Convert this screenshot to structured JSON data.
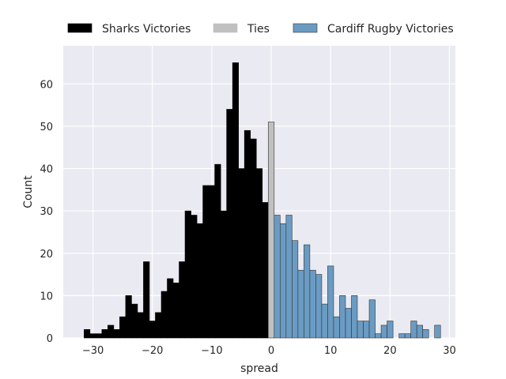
{
  "chart_data": {
    "type": "bar",
    "title": "",
    "xlabel": "spread",
    "ylabel": "Count",
    "xlim": [
      -35,
      31
    ],
    "ylim": [
      0,
      69
    ],
    "xticks": [
      -30,
      -20,
      -10,
      0,
      10,
      20,
      30
    ],
    "yticks": [
      0,
      10,
      20,
      30,
      40,
      50,
      60
    ],
    "grid": true,
    "legend_placement": "top",
    "series": [
      {
        "name": "Sharks Victories",
        "color": "#000000",
        "edgecolor": "#000000",
        "x": [
          -31,
          -30,
          -29,
          -28,
          -27,
          -26,
          -25,
          -24,
          -23,
          -22,
          -21,
          -20,
          -19,
          -18,
          -17,
          -16,
          -15,
          -14,
          -13,
          -12,
          -11,
          -10,
          -9,
          -8,
          -7,
          -6,
          -5,
          -4,
          -3,
          -2,
          -1
        ],
        "values": [
          2,
          1,
          1,
          2,
          3,
          2,
          5,
          10,
          8,
          6,
          18,
          4,
          6,
          11,
          14,
          13,
          18,
          30,
          29,
          27,
          36,
          36,
          41,
          30,
          54,
          65,
          40,
          49,
          47,
          40,
          32
        ]
      },
      {
        "name": "Ties",
        "color": "#c0c0c0",
        "edgecolor": "#333333",
        "x": [
          0
        ],
        "values": [
          51
        ]
      },
      {
        "name": "Cardiff Rugby Victories",
        "color": "#6a9bc3",
        "edgecolor": "#333333",
        "x": [
          1,
          2,
          3,
          4,
          5,
          6,
          7,
          8,
          9,
          10,
          11,
          12,
          13,
          14,
          15,
          16,
          17,
          18,
          19,
          20,
          21,
          22,
          23,
          24,
          25,
          26,
          27,
          28
        ],
        "values": [
          29,
          27,
          29,
          23,
          16,
          22,
          16,
          15,
          8,
          17,
          5,
          10,
          7,
          10,
          4,
          4,
          9,
          1,
          3,
          4,
          0,
          1,
          1,
          4,
          3,
          2,
          0,
          3
        ]
      }
    ]
  }
}
